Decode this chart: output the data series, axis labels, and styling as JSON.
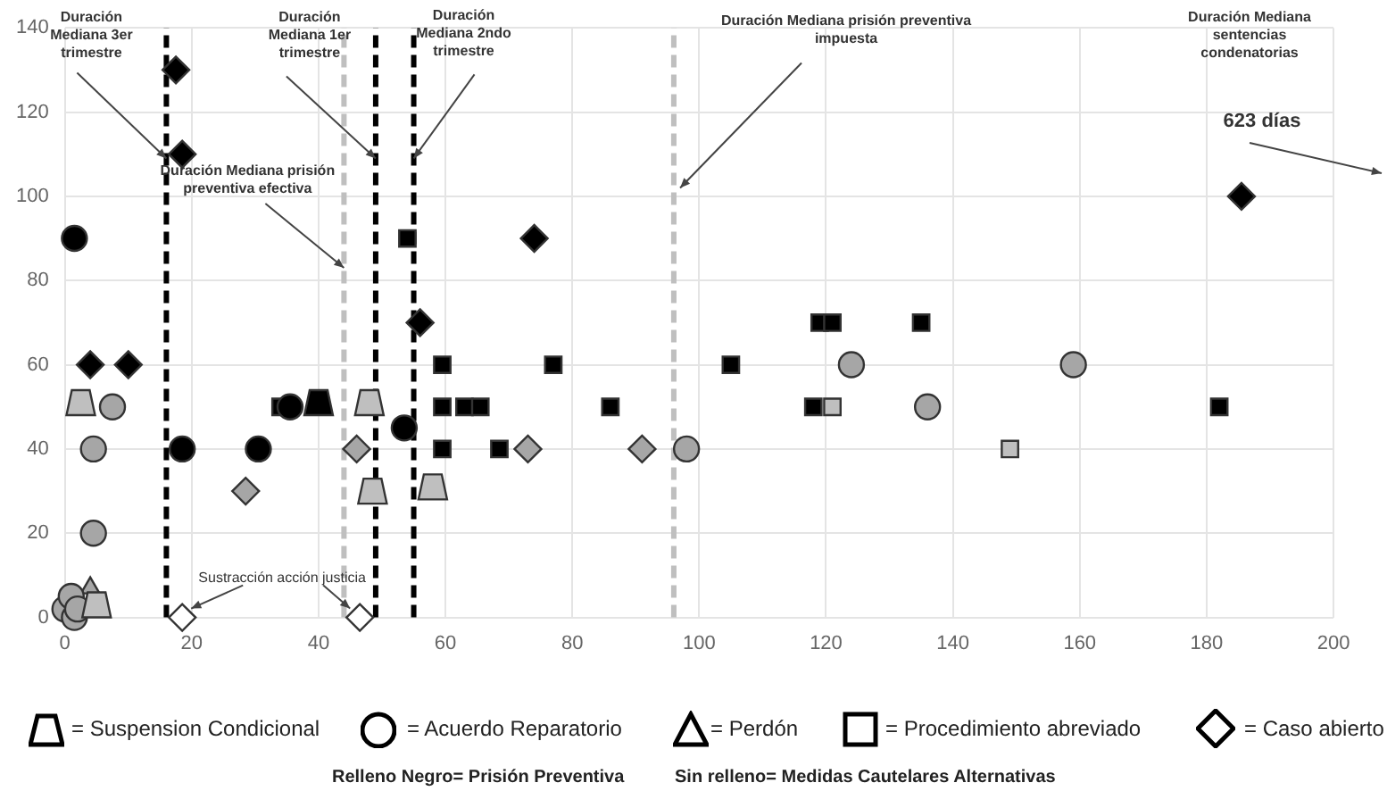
{
  "chart_data": {
    "type": "scatter",
    "xlim": [
      0,
      200
    ],
    "xticks": [
      0,
      20,
      40,
      60,
      80,
      100,
      120,
      140,
      160,
      180,
      200
    ],
    "ylim": [
      0,
      140
    ],
    "yticks": [
      0,
      20,
      40,
      60,
      80,
      100,
      120,
      140
    ],
    "grid": true,
    "legend": false,
    "series": [
      {
        "color": "#000000",
        "x": [
          40
        ],
        "values": [
          51
        ]
      },
      {
        "color": "#bfbfbf",
        "x": [
          2.5,
          5,
          48,
          48.5,
          58
        ],
        "values": [
          51,
          3,
          51,
          30,
          31
        ]
      },
      {
        "color": "#000000",
        "marker": "circle",
        "x": [
          1.5,
          18.5,
          30.5,
          35.5,
          53.5
        ],
        "values": [
          90,
          40,
          40,
          50,
          45
        ]
      },
      {
        "color": "#a6a6a6",
        "marker": "circle",
        "x": [
          0,
          1,
          1.5,
          2,
          7.5,
          4.5,
          4.5,
          98,
          124,
          136,
          159
        ],
        "values": [
          2,
          5,
          0,
          2,
          50,
          40,
          20,
          40,
          60,
          50,
          60
        ]
      },
      {
        "color": "#a6a6a6",
        "marker": "triangle",
        "x": [
          4
        ],
        "values": [
          7
        ]
      },
      {
        "color": "#000000",
        "marker": "square",
        "x": [
          34,
          54,
          59.5,
          59.5,
          63,
          65.5,
          59.5,
          68.5,
          77,
          86,
          105,
          118,
          119,
          121,
          135,
          182
        ],
        "values": [
          50,
          90,
          60,
          50,
          50,
          50,
          40,
          40,
          60,
          50,
          60,
          50,
          70,
          70,
          70,
          50
        ]
      },
      {
        "color": "#bfbfbf",
        "marker": "square",
        "x": [
          121,
          149
        ],
        "values": [
          50,
          40
        ]
      },
      {
        "color": "#000000",
        "marker": "diamond",
        "x": [
          17.5,
          18.5,
          4,
          10,
          56,
          74,
          185.5
        ],
        "values": [
          130,
          110,
          60,
          60,
          70,
          90,
          100
        ]
      },
      {
        "color": "#a6a6a6",
        "marker": "diamond",
        "x": [
          28.5,
          46,
          73,
          91
        ],
        "values": [
          30,
          40,
          40,
          40
        ]
      },
      {
        "color": "#ffffff",
        "marker": "diamond",
        "x": [
          18.5,
          46.5
        ],
        "values": [
          0,
          0
        ]
      }
    ],
    "ref_lines": [
      {
        "axis": "x",
        "value": 16,
        "color": "#000000",
        "line_style": "dashed"
      },
      {
        "axis": "x",
        "value": 44,
        "color": "#bfbfbf",
        "line_style": "dashed"
      },
      {
        "axis": "x",
        "value": 49,
        "color": "#000000",
        "line_style": "dashed"
      },
      {
        "axis": "x",
        "value": 55,
        "color": "#000000",
        "line_style": "dashed"
      },
      {
        "axis": "x",
        "value": 96,
        "color": "#bfbfbf",
        "line_style": "dashed"
      }
    ],
    "annotations": [
      {
        "text": "Duración Mediana 3er trimestre",
        "x": 16,
        "y": 109
      },
      {
        "text": "Duración Mediana 1er trimestre",
        "x": 49,
        "y": 109
      },
      {
        "text": "Duración Mediana 2ndo trimestre",
        "x": 55,
        "y": 109
      },
      {
        "text": "Duración Mediana prisión preventiva efectiva",
        "x": 44,
        "y": 83
      },
      {
        "text": "Duración Mediana prisión preventiva impuesta",
        "x": 97,
        "y": 102
      },
      "Duración Mediana sentencias condenatorias",
      "623 días",
      {
        "text": "Sustracción acción justicia",
        "x": 18.5,
        "y": 0
      },
      "= Suspension Condicional",
      "= Acuerdo Reparatorio",
      "= Perdón",
      "= Procedimiento abreviado",
      "= Caso abierto",
      "Relleno Negro= Prisión Preventiva",
      "Sin relleno= Medidas Cautelares Alternativas"
    ]
  }
}
